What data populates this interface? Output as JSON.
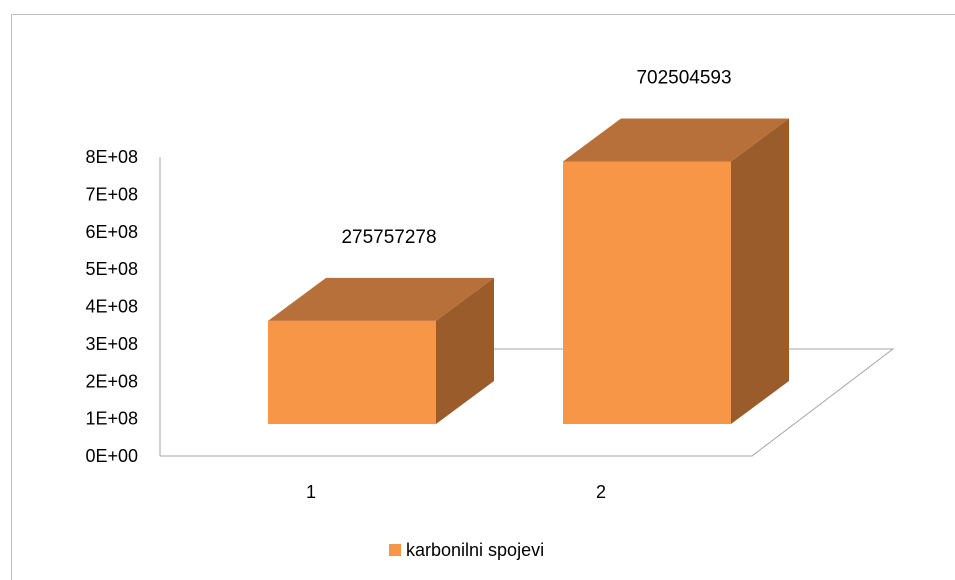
{
  "chart_data": {
    "type": "bar",
    "style": "3d-column",
    "categories": [
      "1",
      "2"
    ],
    "series": [
      {
        "name": "karbonilni spojevi",
        "values": [
          275757278,
          702504593
        ],
        "data_labels": [
          "275757278",
          "702504593"
        ]
      }
    ],
    "y_tick_labels": [
      "0E+00",
      "1E+08",
      "2E+08",
      "3E+08",
      "4E+08",
      "5E+08",
      "6E+08",
      "7E+08",
      "8E+08"
    ],
    "ylim": [
      0,
      800000000
    ],
    "grid": false,
    "legend_position": "bottom",
    "colors": {
      "front": "#F79646",
      "top": "#B8703A",
      "side": "#9A5C2A"
    }
  }
}
